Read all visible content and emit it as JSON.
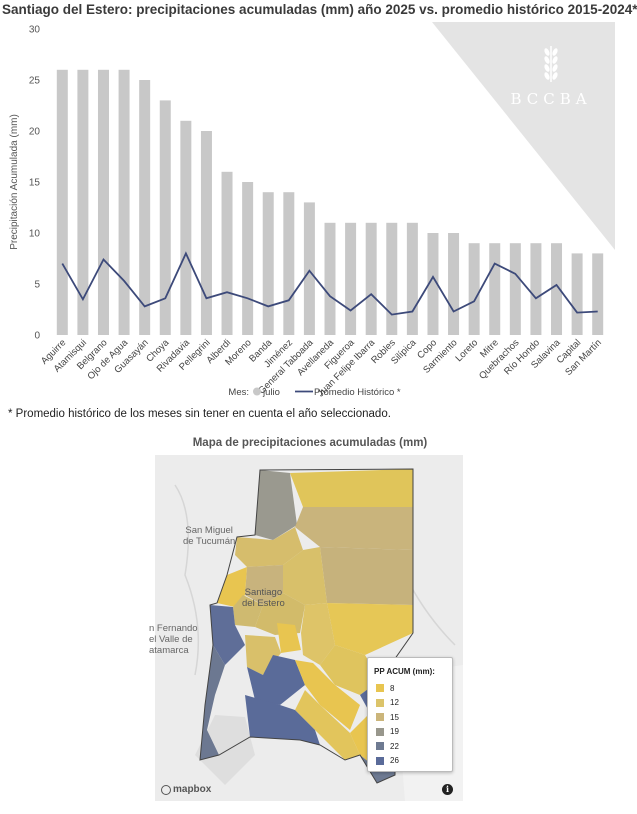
{
  "chart_data": {
    "type": "bar",
    "title": "Santiago del Estero: precipitaciones acumuladas (mm) año 2025 vs. promedio histórico 2015-2024*",
    "ylabel": "Precipitación Acumulada (mm)",
    "xlabel": "",
    "ylim": [
      0,
      30
    ],
    "yticks": [
      0,
      5,
      10,
      15,
      20,
      25,
      30
    ],
    "categories": [
      "Aguirre",
      "Atamisqui",
      "Belgrano",
      "Ojo de Agua",
      "Guasayán",
      "Choya",
      "Rivadavia",
      "Pellegrini",
      "Alberdi",
      "Moreno",
      "Banda",
      "Jiménez",
      "General Taboada",
      "Avellaneda",
      "Figueroa",
      "Juan Felipe Ibarra",
      "Robles",
      "Silípica",
      "Copo",
      "Sarmiento",
      "Loreto",
      "Mitre",
      "Quebrachos",
      "Río Hondo",
      "Salavina",
      "Capital",
      "San Martín"
    ],
    "series": [
      {
        "name": "julio",
        "kind": "bar",
        "color": "#c8c8c8",
        "values": [
          26,
          26,
          26,
          26,
          25,
          23,
          21,
          20,
          16,
          15,
          14,
          14,
          13,
          11,
          11,
          11,
          11,
          11,
          10,
          10,
          9,
          9,
          9,
          9,
          9,
          8,
          8
        ]
      },
      {
        "name": "Promedio Histórico *",
        "kind": "line",
        "color": "#3d4a7a",
        "values": [
          7.0,
          3.5,
          7.4,
          5.3,
          2.8,
          3.6,
          8.0,
          3.6,
          4.2,
          3.6,
          2.8,
          3.4,
          6.3,
          3.8,
          2.4,
          4.0,
          2.0,
          2.3,
          5.7,
          2.3,
          3.3,
          7.0,
          6.0,
          3.6,
          4.9,
          2.2,
          2.3
        ]
      }
    ],
    "legend": {
      "title": "Mes:",
      "position": "bottom"
    },
    "grid": false
  },
  "watermark": {
    "text": "BCCBA",
    "icon": "wheat-icon"
  },
  "footnote": "* Promedio histórico de los meses sin tener en cuenta el año seleccionado.",
  "map": {
    "title": "Mapa de precipitaciones acumuladas (mm)",
    "legend_title": "PP ACUM (mm):",
    "legend_items": [
      {
        "label": "8",
        "color": "#e8c550"
      },
      {
        "label": "12",
        "color": "#dcc46a"
      },
      {
        "label": "15",
        "color": "#cbb57a"
      },
      {
        "label": "19",
        "color": "#98978c"
      },
      {
        "label": "22",
        "color": "#6e7a92"
      },
      {
        "label": "26",
        "color": "#5a6b99"
      }
    ],
    "cities": [
      {
        "name": "San Miguel\nde Tucumán"
      },
      {
        "name": "Santiago\ndel Estero"
      },
      {
        "name": "n Fernando\nel Valle de\natamarca"
      }
    ],
    "attribution": "mapbox",
    "info_symbol": "i"
  }
}
